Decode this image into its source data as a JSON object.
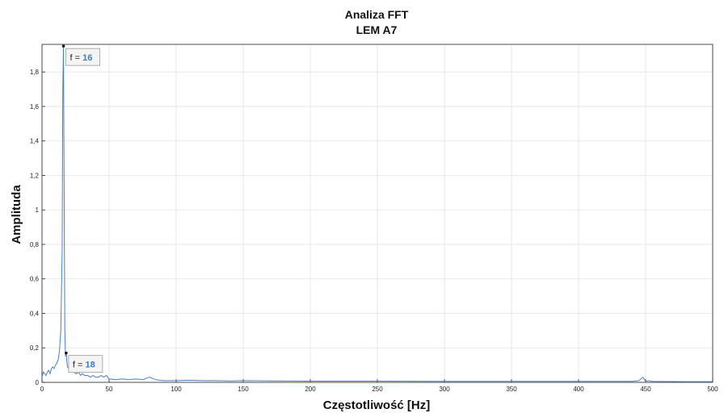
{
  "chart_data": {
    "type": "line",
    "title": "Analiza FFT",
    "subtitle": "LEM A7",
    "xlabel": "Częstotliwość [Hz]",
    "ylabel": "Amplituda",
    "xlim": [
      0,
      500
    ],
    "ylim": [
      0,
      1.96
    ],
    "xticks": [
      0,
      50,
      100,
      150,
      200,
      250,
      300,
      350,
      400,
      450,
      500
    ],
    "xtick_labels": [
      "0",
      "50",
      "100",
      "150",
      "200",
      "250",
      "300",
      "350",
      "400",
      "450",
      "500"
    ],
    "yticks": [
      0,
      0.2,
      0.4,
      0.6,
      0.8,
      1,
      1.2,
      1.4,
      1.6,
      1.8
    ],
    "ytick_labels": [
      "0",
      "0,2",
      "0,4",
      "0,6",
      "0,8",
      "1",
      "1,2",
      "1,4",
      "1,6",
      "1,8"
    ],
    "grid": true,
    "color": "#4a7fc1",
    "series": [
      {
        "x": [
          0,
          1,
          2,
          3,
          4,
          5,
          6,
          7,
          8,
          9,
          10,
          11,
          12,
          13,
          14,
          15,
          15.5,
          16,
          16.5,
          17,
          17.5,
          18,
          18.5,
          19,
          20,
          21,
          22,
          23,
          24,
          25,
          26,
          27,
          28,
          29,
          30,
          32,
          34,
          36,
          38,
          40,
          42,
          44,
          46,
          48,
          50,
          55,
          60,
          65,
          70,
          75,
          80,
          85,
          90,
          100,
          110,
          120,
          130,
          140,
          150,
          175,
          200,
          250,
          300,
          350,
          400,
          440,
          445,
          448,
          450,
          452,
          455,
          460,
          480,
          500
        ],
        "y": [
          0.03,
          0.06,
          0.05,
          0.04,
          0.06,
          0.07,
          0.05,
          0.08,
          0.09,
          0.08,
          0.1,
          0.11,
          0.13,
          0.18,
          0.3,
          0.75,
          1.7,
          1.95,
          1.1,
          0.3,
          0.15,
          0.17,
          0.12,
          0.09,
          0.08,
          0.07,
          0.08,
          0.06,
          0.06,
          0.05,
          0.05,
          0.06,
          0.05,
          0.04,
          0.05,
          0.04,
          0.04,
          0.03,
          0.04,
          0.03,
          0.03,
          0.04,
          0.03,
          0.04,
          0.02,
          0.015,
          0.02,
          0.015,
          0.02,
          0.015,
          0.03,
          0.015,
          0.01,
          0.01,
          0.012,
          0.01,
          0.01,
          0.008,
          0.01,
          0.008,
          0.007,
          0.007,
          0.006,
          0.006,
          0.006,
          0.006,
          0.01,
          0.03,
          0.005,
          0.01,
          0.005,
          0.005,
          0.004,
          0.004
        ]
      }
    ],
    "annotations": [
      {
        "label": "f = ",
        "value": "16",
        "x": 16,
        "y": 1.95
      },
      {
        "label": "f = ",
        "value": "18",
        "x": 18,
        "y": 0.17
      }
    ]
  }
}
